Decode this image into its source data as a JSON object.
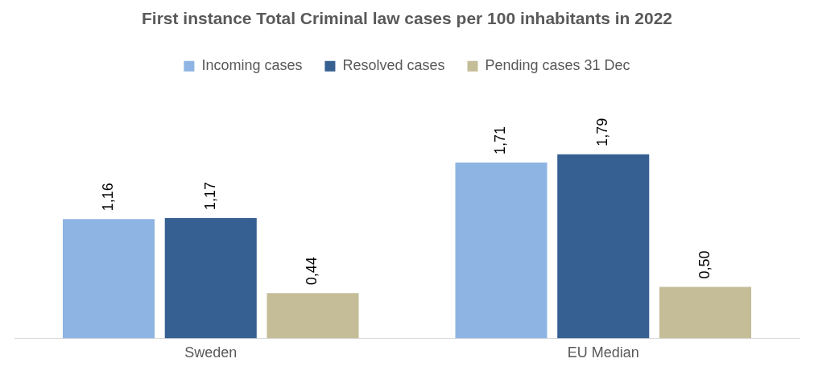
{
  "chart_data": {
    "type": "bar",
    "title": "First instance Total Criminal law cases per 100 inhabitants in 2022",
    "categories": [
      "Sweden",
      "EU Median"
    ],
    "series": [
      {
        "name": "Incoming cases",
        "color": "#8eb4e3",
        "values": [
          1.16,
          1.71
        ],
        "value_labels": [
          "1,16",
          "1,71"
        ]
      },
      {
        "name": "Resolved cases",
        "color": "#366092",
        "values": [
          1.17,
          1.79
        ],
        "value_labels": [
          "1,17",
          "1,79"
        ]
      },
      {
        "name": "Pending cases 31 Dec",
        "color": "#c4bd97",
        "values": [
          0.44,
          0.5
        ],
        "value_labels": [
          "0,44",
          "0,50"
        ]
      }
    ],
    "legend": "top",
    "grid": false
  }
}
